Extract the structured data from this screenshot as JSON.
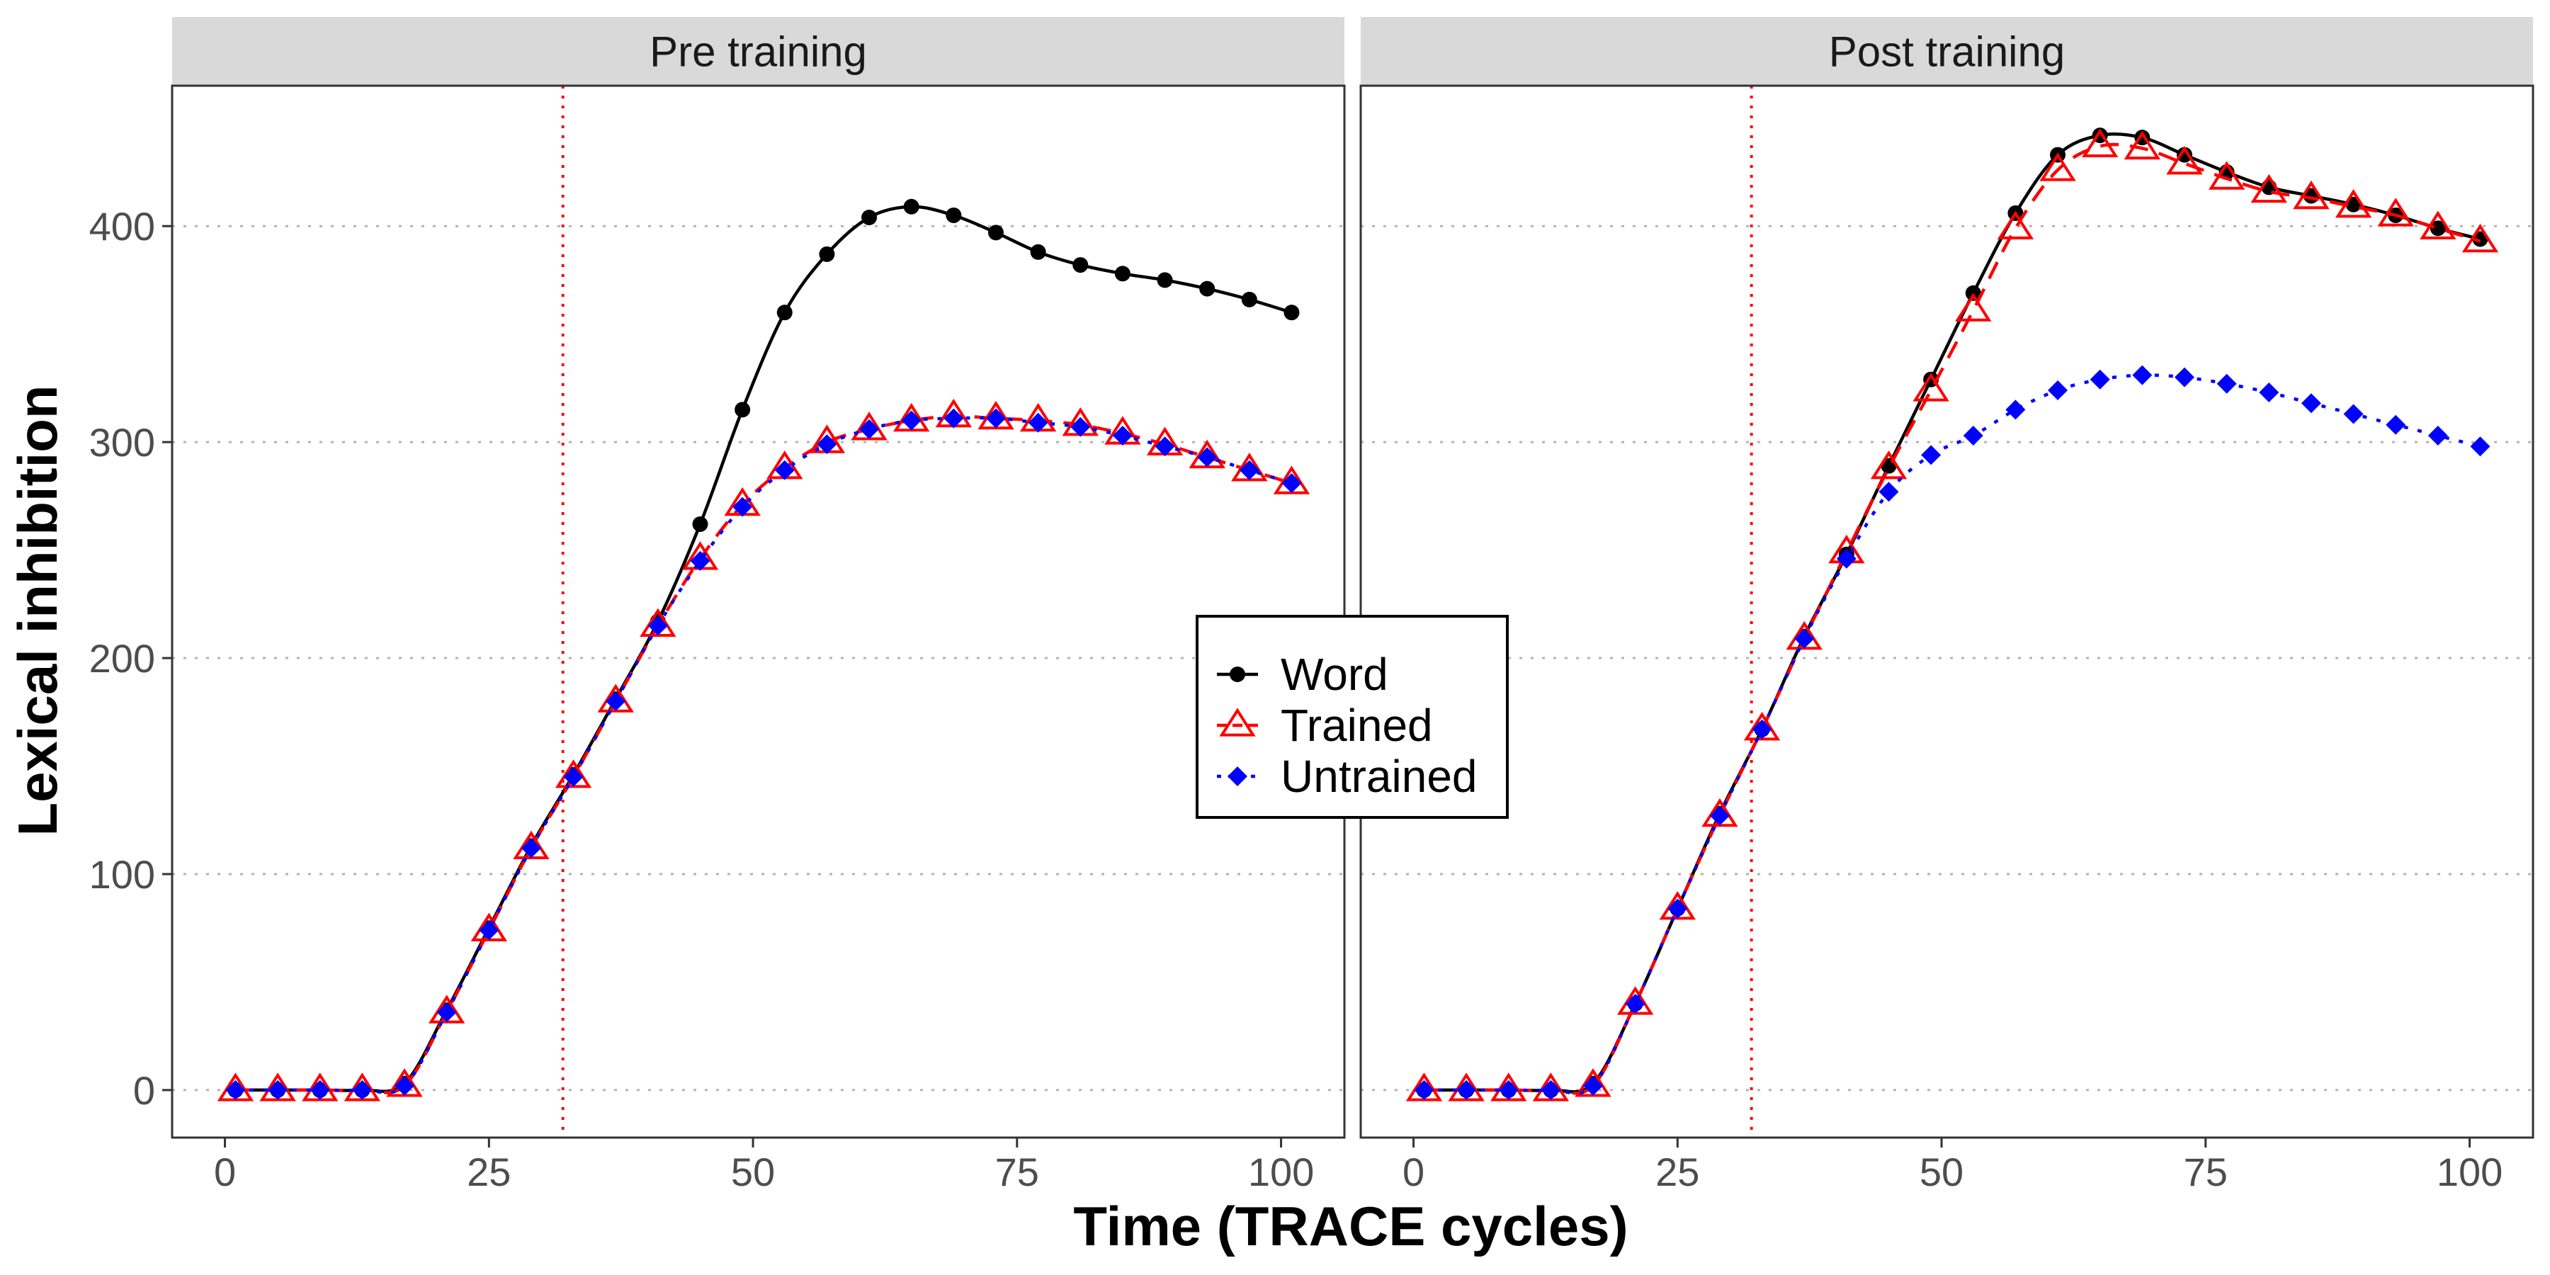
{
  "chart_data": {
    "type": "line",
    "xlabel": "Time (TRACE cycles)",
    "ylabel": "Lexical inhibition",
    "xlim": [
      -5,
      106
    ],
    "ylim": [
      -22,
      465
    ],
    "x_ticks": [
      0,
      25,
      50,
      75,
      100
    ],
    "x_tick_labels": [
      "0",
      "25",
      "50",
      "75",
      "100"
    ],
    "y_ticks": [
      0,
      100,
      200,
      300,
      400
    ],
    "y_tick_labels": [
      "0",
      "100",
      "200",
      "300",
      "400"
    ],
    "grid": "horizontal dotted",
    "legend_position": "center",
    "reference_line_x": 32,
    "x": [
      1,
      5,
      9,
      13,
      17,
      21,
      25,
      29,
      33,
      37,
      41,
      45,
      49,
      53,
      57,
      61,
      65,
      69,
      73,
      77,
      81,
      85,
      89,
      93,
      97,
      101
    ],
    "series_styles": [
      {
        "name": "Word",
        "color": "#000000",
        "dash": "solid",
        "marker": "circle"
      },
      {
        "name": "Trained",
        "color": "#ff0000",
        "dash": "dashed",
        "marker": "open-triangle"
      },
      {
        "name": "Untrained",
        "color": "#0000ff",
        "dash": "dotted",
        "marker": "diamond"
      }
    ],
    "panels": [
      {
        "title": "Pre training",
        "series": [
          {
            "name": "Word",
            "values": [
              0,
              0,
              0,
              0,
              3,
              37,
              75,
              113,
              146,
              181,
              217,
              262,
              315,
              360,
              387,
              404,
              409,
              405,
              397,
              388,
              382,
              378,
              375,
              371,
              366,
              360
            ]
          },
          {
            "name": "Trained",
            "values": [
              0,
              0,
              0,
              0,
              2,
              36,
              74,
              112,
              145,
              180,
              215,
              246,
              271,
              288,
              300,
              306,
              310,
              312,
              311,
              310,
              308,
              304,
              299,
              293,
              287,
              281
            ]
          },
          {
            "name": "Untrained",
            "values": [
              0,
              0,
              0,
              0,
              2,
              36,
              74,
              112,
              145,
              180,
              215,
              245,
              270,
              287,
              299,
              306,
              310,
              311,
              311,
              309,
              307,
              303,
              298,
              293,
              287,
              281
            ]
          }
        ]
      },
      {
        "title": "Post training",
        "series": [
          {
            "name": "Word",
            "values": [
              0,
              0,
              0,
              0,
              3,
              40,
              84,
              128,
              167,
              210,
              248,
              289,
              329,
              369,
              406,
              433,
              442,
              441,
              433,
              425,
              418,
              414,
              410,
              405,
              399,
              394
            ]
          },
          {
            "name": "Trained",
            "values": [
              0,
              0,
              0,
              0,
              2,
              40,
              84,
              127,
              167,
              209,
              249,
              288,
              324,
              361,
              399,
              426,
              437,
              436,
              429,
              422,
              416,
              413,
              409,
              405,
              399,
              393
            ]
          },
          {
            "name": "Untrained",
            "values": [
              0,
              0,
              0,
              0,
              2,
              40,
              84,
              127,
              167,
              209,
              246,
              277,
              294,
              303,
              315,
              324,
              329,
              331,
              330,
              327,
              323,
              318,
              313,
              308,
              303,
              298
            ]
          }
        ]
      }
    ],
    "legend": [
      {
        "label": "Word"
      },
      {
        "label": "Trained"
      },
      {
        "label": "Untrained"
      }
    ]
  }
}
